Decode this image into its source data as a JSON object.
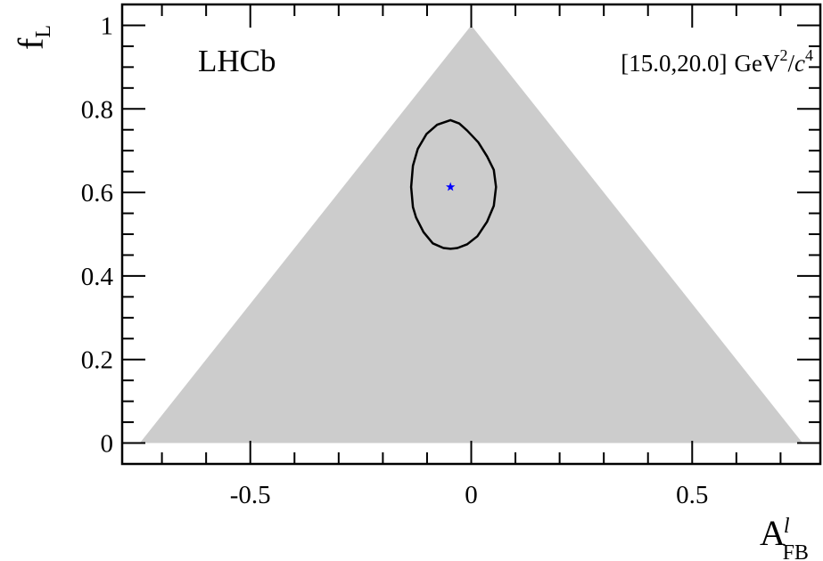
{
  "chart_data": {
    "type": "scatter",
    "experiment_label": "LHCb",
    "bin_label": {
      "open": "[",
      "low": "15.0",
      "sep": ",",
      "high": "20.0",
      "close": "]",
      "unit_main": "GeV",
      "unit_exp1": "2",
      "unit_slash": "/",
      "unit_c": "c",
      "unit_exp2": "4"
    },
    "xlabel": {
      "main": "A",
      "sup": "l",
      "sub": "FB"
    },
    "ylabel": {
      "main": "f",
      "sub": "L"
    },
    "xlim": [
      -0.79,
      0.79
    ],
    "ylim": [
      -0.05,
      1.05
    ],
    "x_ticks": [
      {
        "value": -0.5,
        "label": "-0.5"
      },
      {
        "value": 0,
        "label": "0"
      },
      {
        "value": 0.5,
        "label": "0.5"
      }
    ],
    "y_ticks": [
      {
        "value": 0,
        "label": "0"
      },
      {
        "value": 0.2,
        "label": "0.2"
      },
      {
        "value": 0.4,
        "label": "0.4"
      },
      {
        "value": 0.6,
        "label": "0.6"
      },
      {
        "value": 0.8,
        "label": "0.8"
      },
      {
        "value": 1,
        "label": "1"
      }
    ],
    "x_minor_step": 0.1,
    "y_minor_step": 0.05,
    "allowed_region": {
      "color": "#cccccc",
      "vertices": [
        [
          -0.75,
          0
        ],
        [
          0,
          1
        ],
        [
          0.75,
          0
        ]
      ]
    },
    "best_fit": {
      "x": -0.047,
      "y": 0.613,
      "marker": "star",
      "color": "#0000ff"
    },
    "contour": {
      "color": "#000000",
      "points": [
        [
          -0.047,
          0.773
        ],
        [
          -0.027,
          0.765
        ],
        [
          -0.009,
          0.748
        ],
        [
          0.016,
          0.72
        ],
        [
          0.036,
          0.686
        ],
        [
          0.051,
          0.654
        ],
        [
          0.056,
          0.613
        ],
        [
          0.051,
          0.568
        ],
        [
          0.036,
          0.53
        ],
        [
          0.014,
          0.495
        ],
        [
          -0.009,
          0.476
        ],
        [
          -0.031,
          0.467
        ],
        [
          -0.047,
          0.465
        ],
        [
          -0.063,
          0.467
        ],
        [
          -0.087,
          0.478
        ],
        [
          -0.108,
          0.505
        ],
        [
          -0.125,
          0.54
        ],
        [
          -0.132,
          0.565
        ],
        [
          -0.136,
          0.613
        ],
        [
          -0.132,
          0.664
        ],
        [
          -0.121,
          0.704
        ],
        [
          -0.101,
          0.74
        ],
        [
          -0.077,
          0.762
        ],
        [
          -0.047,
          0.773
        ]
      ]
    }
  }
}
